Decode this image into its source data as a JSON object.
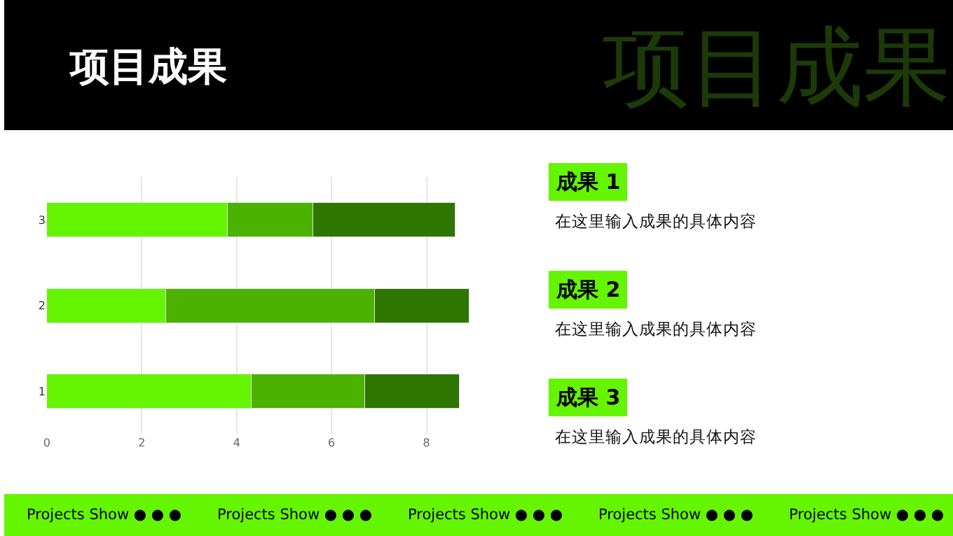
{
  "chart_data": {
    "type": "bar",
    "orientation": "horizontal",
    "stacked": true,
    "title": "项目成果",
    "categories": [
      "3",
      "2",
      "1"
    ],
    "series": [
      {
        "color": "#66f500",
        "values": [
          3.8,
          2.5,
          4.3
        ]
      },
      {
        "color": "#4cb200",
        "values": [
          1.8,
          4.4,
          2.4
        ]
      },
      {
        "color": "#2d7600",
        "values": [
          3.0,
          2.0,
          2.0
        ]
      }
    ],
    "xlim": [
      0,
      8.9
    ],
    "xticks": [
      0,
      2,
      4,
      6,
      8
    ],
    "grid": "x",
    "legend": false,
    "annotations": [
      "项目成果",
      "成果 1",
      "在这里输入成果的具体内容",
      "成果 2",
      "在这里输入成果的具体内容",
      "成果 3",
      "在这里输入成果的具体内容",
      "Projects Show ● ● ●",
      "Projects Show ● ● ●",
      "Projects Show ● ● ●",
      "Projects Show ● ● ●",
      "Projects Show ● ● ●"
    ]
  }
}
